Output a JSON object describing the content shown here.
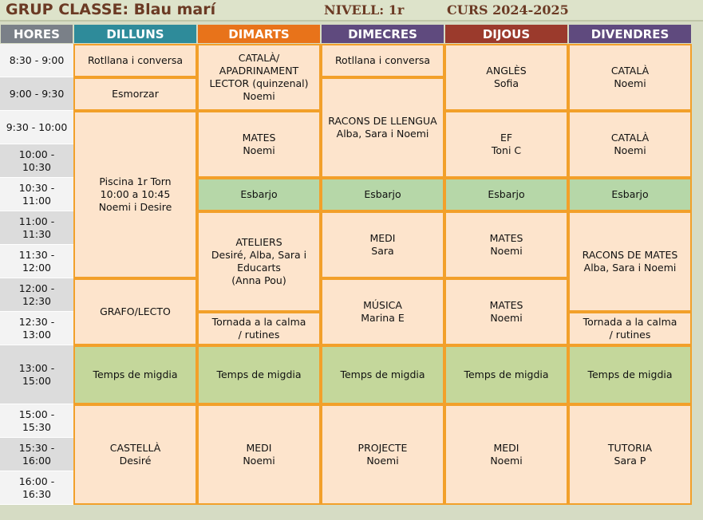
{
  "title": {
    "group": "GRUP CLASSE: Blau marí",
    "level": "NIVELL: 1r",
    "year": "CURS 2024-2025"
  },
  "header": {
    "hours": "HORES",
    "days": [
      {
        "label": "DILLUNS",
        "color": "#2e8b9a"
      },
      {
        "label": "DIMARTS",
        "color": "#e8731a"
      },
      {
        "label": "DIMECRES",
        "color": "#5f4a7e"
      },
      {
        "label": "DIJOUS",
        "color": "#9b3a2c"
      },
      {
        "label": "DIVENDRES",
        "color": "#5f4a7e"
      }
    ]
  },
  "times": [
    "8:30 - 9:00",
    "9:00 - 9:30",
    "9:30 - 10:00",
    "10:00 - 10:30",
    "10:30 - 11:00",
    "11:00 - 11:30",
    "11:30 - 12:00",
    "12:00 - 12:30",
    "12:30 - 13:00",
    "13:00 - 15:00",
    "15:00 - 15:30",
    "15:30 - 16:00",
    "16:00 - 16:30"
  ],
  "activities": {
    "mon": [
      {
        "lines": [
          "Rotllana i conversa"
        ]
      },
      {
        "lines": [
          "Esmorzar"
        ]
      },
      {
        "lines": [
          "Piscina 1r Torn",
          "10:00 a 10:45",
          "Noemi i Desire"
        ]
      },
      {
        "lines": [
          "GRAFO/LECTO"
        ]
      },
      {
        "lines": [
          "Temps de migdia"
        ]
      },
      {
        "lines": [
          "CASTELLÀ",
          "Desiré"
        ]
      }
    ],
    "tue": [
      {
        "lines": [
          "CATALÀ/",
          "APADRINAMENT",
          "LECTOR (quinzenal)",
          "Noemi"
        ]
      },
      {
        "lines": [
          "MATES",
          "Noemi"
        ]
      },
      {
        "lines": [
          "Esbarjo"
        ]
      },
      {
        "lines": [
          "ATELIERS",
          "Desiré, Alba, Sara i",
          "Educarts",
          "(Anna Pou)"
        ]
      },
      {
        "lines": [
          "Tornada a la calma",
          "/ rutines"
        ]
      },
      {
        "lines": [
          "Temps de migdia"
        ]
      },
      {
        "lines": [
          "MEDI",
          "Noemi"
        ]
      }
    ],
    "wed": [
      {
        "lines": [
          "Rotllana i conversa"
        ]
      },
      {
        "lines": [
          "RACONS DE LLENGUA",
          "Alba, Sara i Noemi"
        ]
      },
      {
        "lines": [
          "Esbarjo"
        ]
      },
      {
        "lines": [
          "MEDI",
          "Sara"
        ]
      },
      {
        "lines": [
          "MÚSICA",
          "Marina E"
        ]
      },
      {
        "lines": [
          "Temps de migdia"
        ]
      },
      {
        "lines": [
          "PROJECTE",
          "Noemi"
        ]
      }
    ],
    "thu": [
      {
        "lines": [
          "ANGLÈS",
          "Sofia"
        ]
      },
      {
        "lines": [
          "EF",
          "Toni C"
        ]
      },
      {
        "lines": [
          "Esbarjo"
        ]
      },
      {
        "lines": [
          "MATES",
          "Noemi"
        ]
      },
      {
        "lines": [
          "MATES",
          "Noemi"
        ]
      },
      {
        "lines": [
          "Temps de migdia"
        ]
      },
      {
        "lines": [
          "MEDI",
          "Noemi"
        ]
      }
    ],
    "fri": [
      {
        "lines": [
          "CATALÀ",
          "Noemi"
        ]
      },
      {
        "lines": [
          "CATALÀ",
          "Noemi"
        ]
      },
      {
        "lines": [
          "Esbarjo"
        ]
      },
      {
        "lines": [
          "RACONS DE MATES",
          "Alba, Sara i Noemi"
        ]
      },
      {
        "lines": [
          "Tornada a la calma",
          "/ rutines"
        ]
      },
      {
        "lines": [
          "Temps de migdia"
        ]
      },
      {
        "lines": [
          "TUTORIA",
          "Sara P"
        ]
      }
    ]
  }
}
